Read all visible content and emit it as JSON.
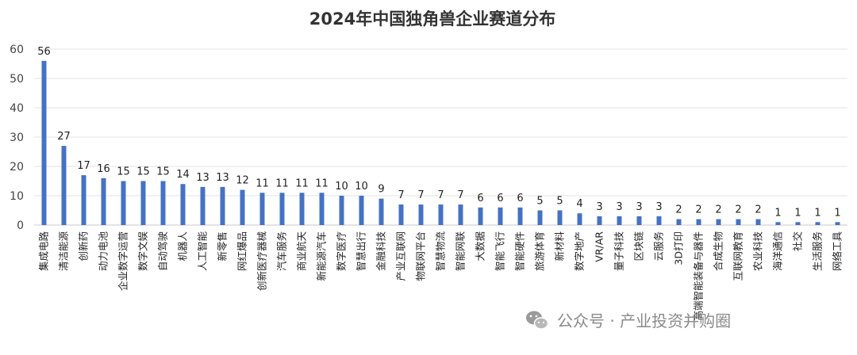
{
  "chart_data": {
    "type": "bar",
    "title": "2024年中国独角兽企业赛道分布",
    "xlabel": "",
    "ylabel": "",
    "ylim": [
      0,
      60
    ],
    "yticks": [
      0,
      10,
      20,
      30,
      40,
      50,
      60
    ],
    "grid": true,
    "legend": "none",
    "bar_color": "#4472c4",
    "categories": [
      "集成电路",
      "清洁能源",
      "创新药",
      "动力电池",
      "企业数字运营",
      "数字文娱",
      "自动驾驶",
      "机器人",
      "人工智能",
      "新零售",
      "网红爆品",
      "创新医疗器械",
      "汽车服务",
      "商业航天",
      "新能源汽车",
      "数字医疗",
      "智慧出行",
      "金融科技",
      "产业互联网",
      "物联网平台",
      "智慧物流",
      "智能网联",
      "大数据",
      "智能飞行",
      "智能硬件",
      "旅游体育",
      "新材料",
      "数字地产",
      "VR/AR",
      "量子科技",
      "区块链",
      "云服务",
      "3D打印",
      "高端智能装备与器件",
      "合成生物",
      "互联网教育",
      "农业科技",
      "海洋通信",
      "社交",
      "生活服务",
      "网络工具"
    ],
    "values": [
      56,
      27,
      17,
      16,
      15,
      15,
      15,
      14,
      13,
      13,
      12,
      11,
      11,
      11,
      11,
      10,
      10,
      9,
      7,
      7,
      7,
      7,
      6,
      6,
      6,
      5,
      5,
      4,
      3,
      3,
      3,
      3,
      2,
      2,
      2,
      2,
      2,
      1,
      1,
      1,
      1
    ]
  },
  "watermark": {
    "text": "公众号 · 产业投资并购圈",
    "icon": "wechat-icon"
  }
}
